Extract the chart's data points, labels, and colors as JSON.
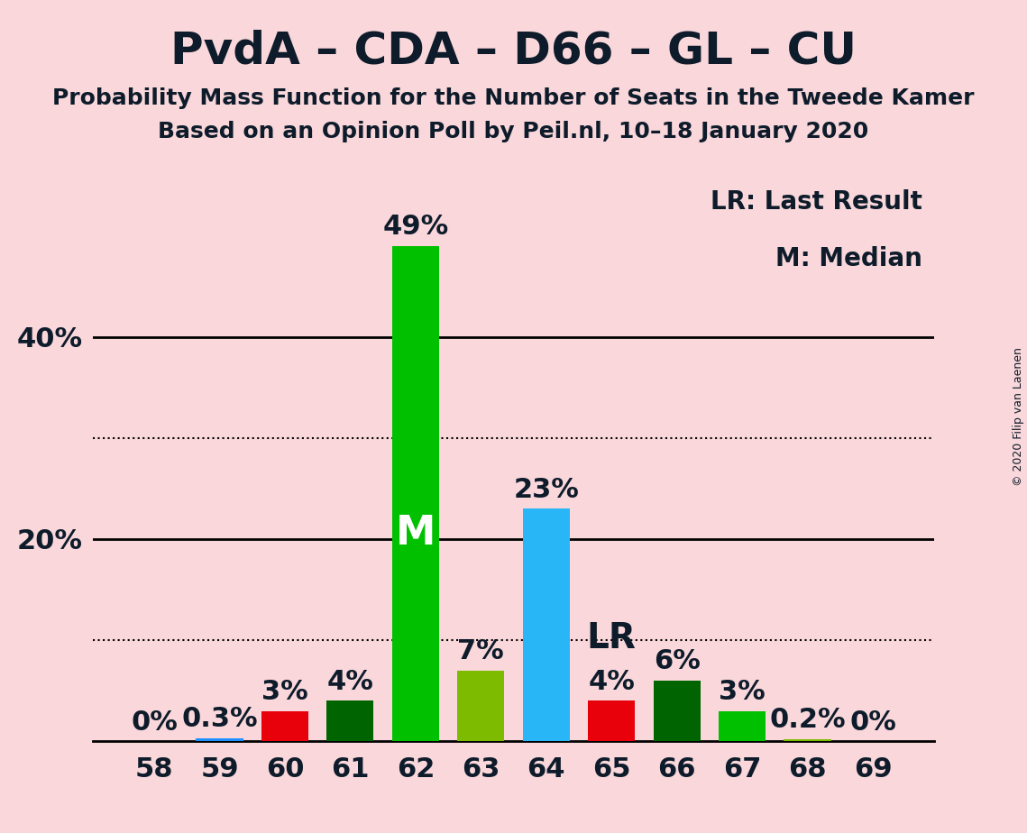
{
  "title": "PvdA – CDA – D66 – GL – CU",
  "subtitle1": "Probability Mass Function for the Number of Seats in the Tweede Kamer",
  "subtitle2": "Based on an Opinion Poll by Peil.nl, 10–18 January 2020",
  "copyright": "© 2020 Filip van Laenen",
  "seats": [
    58,
    59,
    60,
    61,
    62,
    63,
    64,
    65,
    66,
    67,
    68,
    69
  ],
  "probabilities": [
    0.0,
    0.3,
    3.0,
    4.0,
    49.0,
    7.0,
    23.0,
    4.0,
    6.0,
    3.0,
    0.2,
    0.0
  ],
  "bar_colors": [
    "#1E90FF",
    "#1E90FF",
    "#E8000A",
    "#006400",
    "#00C000",
    "#7CBB00",
    "#29B6F6",
    "#E8000A",
    "#006400",
    "#00C000",
    "#7CBB00",
    "#7CBB00"
  ],
  "median_seat": 62,
  "lr_seat": 65,
  "median_label": "M",
  "lr_label": "LR",
  "legend_lr": "LR: Last Result",
  "legend_m": "M: Median",
  "background_color": "#F9D7DA",
  "ytick_positions": [
    20,
    40
  ],
  "ytick_labels": [
    "20%",
    "40%"
  ],
  "solid_gridlines": [
    20,
    40
  ],
  "dotted_gridlines": [
    10,
    30
  ],
  "ylim": [
    0,
    56
  ],
  "title_fontsize": 36,
  "subtitle_fontsize": 18,
  "tick_fontsize": 22,
  "pct_label_fontsize": 22,
  "legend_fontsize": 20,
  "median_label_fontsize": 32,
  "lr_label_fontsize": 28,
  "copyright_fontsize": 9
}
